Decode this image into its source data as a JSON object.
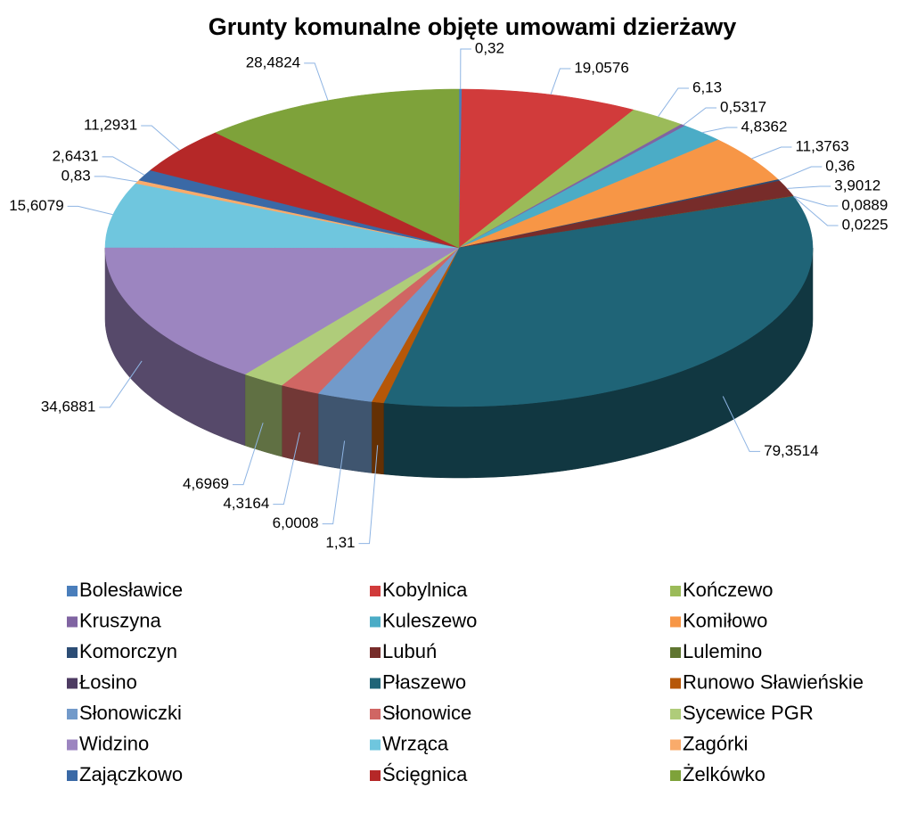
{
  "chart_data": {
    "type": "pie3d",
    "title": "Grunty komunalne objęte umowami dzierżawy",
    "categories": [
      "Bolesławice",
      "Kobylnica",
      "Kończewo",
      "Kruszyna",
      "Kuleszewo",
      "Komiłowo",
      "Komorczyn",
      "Lubuń",
      "Lulemino",
      "Łosino",
      "Płaszewo",
      "Runowo Sławieńskie",
      "Słonowiczki",
      "Słonowice",
      "Sycewice PGR",
      "Widzino",
      "Wrząca",
      "Zagórki",
      "Zajączkowo",
      "Ścięgnica",
      "Żelkówko"
    ],
    "values": [
      0.32,
      19.0576,
      6.13,
      0.5317,
      4.8362,
      11.3763,
      0.36,
      3.9012,
      0.0889,
      0.0225,
      79.3514,
      1.31,
      6.0008,
      4.3164,
      4.6969,
      34.6881,
      15.6079,
      0.83,
      2.6431,
      11.2931,
      28.4824
    ],
    "value_labels": [
      "0,32",
      "19,0576",
      "6,13",
      "0,5317",
      "4,8362",
      "11,3763",
      "0,36",
      "3,9012",
      "0,0889",
      "0,0225",
      "79,3514",
      "1,31",
      "6,0008",
      "4,3164",
      "4,6969",
      "34,6881",
      "15,6079",
      "0,83",
      "2,6431",
      "11,2931",
      "28,4824"
    ],
    "colors": [
      "#4a7ebb",
      "#d13b3b",
      "#9bbb59",
      "#8064a2",
      "#4bacc6",
      "#f79646",
      "#2c4d75",
      "#772c2a",
      "#5f7530",
      "#4d3b62",
      "#1f6477",
      "#b65708",
      "#729aca",
      "#d06663",
      "#afcc7a",
      "#9c85c0",
      "#6fc6de",
      "#f9ab6b",
      "#3a69a6",
      "#b52828",
      "#7ea23a"
    ],
    "legend": "bottom"
  }
}
